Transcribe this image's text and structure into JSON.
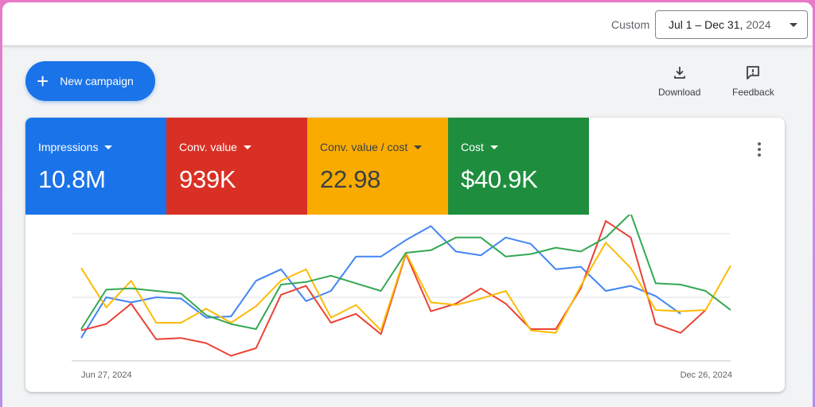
{
  "header": {
    "range_label": "Custom",
    "date_range": "Jul 1 – Dec 31,",
    "date_year": "2024"
  },
  "actions": {
    "new_campaign_label": "New campaign",
    "download_label": "Download",
    "feedback_label": "Feedback"
  },
  "metrics": [
    {
      "label": "Impressions",
      "value": "10.8M",
      "color": "#1a73e8"
    },
    {
      "label": "Conv. value",
      "value": "939K",
      "color": "#d93025"
    },
    {
      "label": "Conv. value / cost",
      "value": "22.98",
      "color": "#f9ab00"
    },
    {
      "label": "Cost",
      "value": "$40.9K",
      "color": "#1e8e3e"
    }
  ],
  "chart_data": {
    "type": "line",
    "x_start_label": "Jun 27, 2024",
    "x_end_label": "Dec 26, 2024",
    "grid": true,
    "ylim": [
      0,
      1
    ],
    "series": [
      {
        "color": "#4285f4",
        "values": [
          0.18,
          0.5,
          0.46,
          0.5,
          0.49,
          0.34,
          0.35,
          0.63,
          0.72,
          0.47,
          0.55,
          0.82,
          0.82,
          0.95,
          1.06,
          0.86,
          0.83,
          0.97,
          0.92,
          0.72,
          0.74,
          0.55,
          0.59,
          0.51,
          0.37
        ]
      },
      {
        "color": "#ea4335",
        "values": [
          0.24,
          0.29,
          0.45,
          0.17,
          0.18,
          0.14,
          0.04,
          0.1,
          0.52,
          0.59,
          0.3,
          0.37,
          0.21,
          0.84,
          0.39,
          0.45,
          0.57,
          0.45,
          0.25,
          0.25,
          0.57,
          1.1,
          0.97,
          0.29,
          0.22,
          0.4
        ]
      },
      {
        "color": "#fbbc04",
        "values": [
          0.73,
          0.42,
          0.63,
          0.3,
          0.3,
          0.41,
          0.3,
          0.43,
          0.63,
          0.72,
          0.34,
          0.44,
          0.24,
          0.85,
          0.46,
          0.44,
          0.49,
          0.55,
          0.24,
          0.22,
          0.59,
          0.93,
          0.73,
          0.4,
          0.39,
          0.4,
          0.75
        ]
      },
      {
        "color": "#34a853",
        "values": [
          0.25,
          0.56,
          0.57,
          0.55,
          0.53,
          0.36,
          0.29,
          0.25,
          0.6,
          0.62,
          0.67,
          0.61,
          0.55,
          0.85,
          0.87,
          0.97,
          0.97,
          0.82,
          0.84,
          0.89,
          0.86,
          0.97,
          1.16,
          0.61,
          0.6,
          0.55,
          0.4
        ]
      }
    ]
  }
}
